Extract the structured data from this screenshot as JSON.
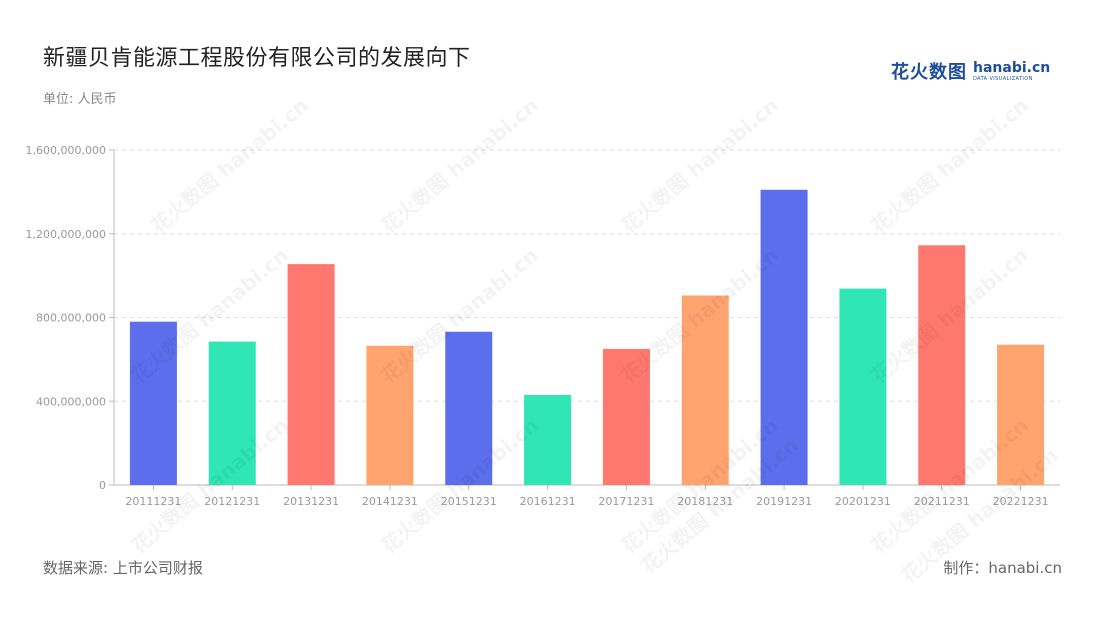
{
  "header": {
    "title": "新疆贝肯能源工程股份有限公司的发展向下",
    "unit": "单位: 人民币"
  },
  "logo": {
    "cn": "花火数图",
    "en": "hanabi.cn",
    "sub": "DATA VISUALIZATION"
  },
  "footer": {
    "source": "数据来源: 上市公司财报",
    "credit": "制作：hanabi.cn"
  },
  "colors": [
    "#5B6FED",
    "#2FE6B4",
    "#FF786F",
    "#FFA46F"
  ],
  "chart_data": {
    "type": "bar",
    "categories": [
      "20111231",
      "20121231",
      "20131231",
      "20141231",
      "20151231",
      "20161231",
      "20171231",
      "20181231",
      "20191231",
      "20201231",
      "20211231",
      "20221231"
    ],
    "values": [
      780000000,
      685000000,
      1055000000,
      665000000,
      732000000,
      430000000,
      650000000,
      905000000,
      1410000000,
      938000000,
      1145000000,
      670000000
    ],
    "yticks": [
      "0",
      "400,000,000",
      "800,000,000",
      "1,200,000,000",
      "1,600,000,000"
    ],
    "ytick_values": [
      0,
      400000000,
      800000000,
      1200000000,
      1600000000
    ],
    "ylim": [
      0,
      1600000000
    ],
    "grid": true
  }
}
